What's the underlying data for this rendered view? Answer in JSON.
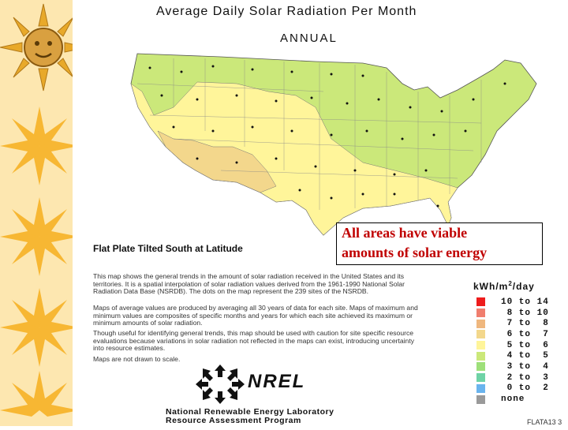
{
  "title": "Average Daily Solar Radiation Per Month",
  "subtitle": "ANNUAL",
  "map_caption": "Flat Plate Tilted South at Latitude",
  "callout": [
    "All areas have viable",
    "amounts of solar energy"
  ],
  "description": [
    "This map shows the general trends in the amount of solar radiation received in the United States and its territories.  It is a spatial interpolation of solar radiation values derived from the 1961-1990 National Solar Radiation Data Base (NSRDB).  The dots on the map represent the 239 sites of the NSRDB.",
    "Maps of average values are produced by averaging all 30 years of data for each site. Maps of maximum and minimum values are composites of specific months and years for which each site achieved its maximum or minimum amounts of solar radiation.",
    "Though useful for identifying general trends, this map should be used with caution for site specific resource evaluations because variations in solar radiation not reflected in the maps can exist, introducing uncertainty into resource estimates.",
    "Maps are not drawn to scale."
  ],
  "legend": {
    "units": "kWh/m",
    "units_sup": "2",
    "units_suffix": "/day",
    "items": [
      {
        "label": "10 to 14",
        "color": "#ee1c1c"
      },
      {
        "label": " 8 to 10",
        "color": "#f07e6e"
      },
      {
        "label": " 7 to  8",
        "color": "#efb77e"
      },
      {
        "label": " 6 to  7",
        "color": "#f3d78c"
      },
      {
        "label": " 5 to  6",
        "color": "#fff59a"
      },
      {
        "label": " 4 to  5",
        "color": "#cbe87a"
      },
      {
        "label": " 3 to  4",
        "color": "#9ee07a"
      },
      {
        "label": " 2 to  3",
        "color": "#6fd3a6"
      },
      {
        "label": " 0 to  2",
        "color": "#6ab4ee"
      },
      {
        "label": "none",
        "color": "#9a9a9a"
      }
    ]
  },
  "logo_text": "NREL",
  "lab_name": "National Renewable Energy Laboratory",
  "lab_program": "Resource Assessment Program",
  "figure_id": "FLATA13 3"
}
